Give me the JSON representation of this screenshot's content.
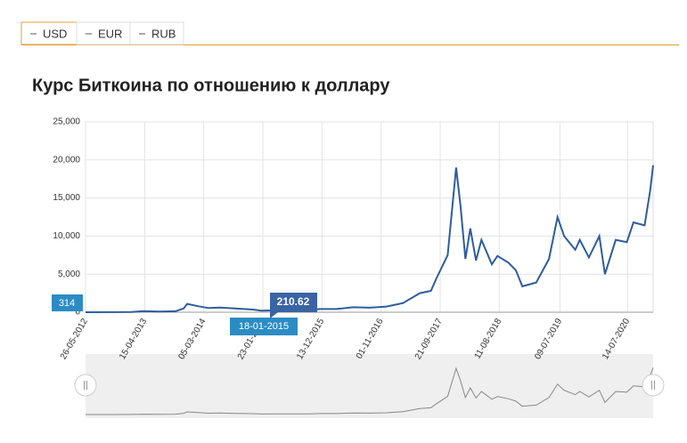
{
  "tabs": [
    "USD",
    "EUR",
    "RUB"
  ],
  "chart_data": {
    "type": "line",
    "title": "Курс Биткоина по отношению к доллару",
    "x": [
      "26-05-2012",
      "01-10-2012",
      "01-02-2013",
      "10-04-2013",
      "01-07-2013",
      "01-10-2013",
      "15-11-2013",
      "04-12-2013",
      "01-02-2014",
      "01-04-2014",
      "01-06-2014",
      "01-09-2014",
      "01-12-2014",
      "14-01-2015",
      "01-04-2015",
      "01-07-2015",
      "01-10-2015",
      "01-12-2015",
      "01-03-2016",
      "01-06-2016",
      "01-09-2016",
      "01-12-2016",
      "01-03-2017",
      "01-06-2017",
      "01-08-2017",
      "01-09-2017",
      "01-11-2017",
      "17-12-2017",
      "10-01-2018",
      "06-02-2018",
      "05-03-2018",
      "05-04-2018",
      "05-05-2018",
      "01-07-2018",
      "01-08-2018",
      "01-10-2018",
      "10-11-2018",
      "15-12-2018",
      "01-03-2019",
      "10-05-2019",
      "26-06-2019",
      "01-08-2019",
      "01-10-2019",
      "26-10-2019",
      "15-12-2019",
      "10-02-2020",
      "12-03-2020",
      "10-05-2020",
      "10-07-2020",
      "15-08-2020",
      "15-10-2020",
      "15-11-2020",
      "01-12-2020"
    ],
    "series": [
      {
        "name": "USD",
        "color": "#2f5d9a",
        "values": [
          5,
          12,
          20,
          140,
          90,
          130,
          500,
          1100,
          800,
          550,
          620,
          480,
          350,
          210,
          250,
          260,
          240,
          420,
          420,
          650,
          600,
          750,
          1200,
          2500,
          2800,
          4500,
          7500,
          19000,
          14000,
          7000,
          11000,
          6800,
          9500,
          6300,
          7400,
          6500,
          5500,
          3400,
          3900,
          7000,
          12500,
          10000,
          8200,
          9500,
          7200,
          10000,
          5000,
          9500,
          9200,
          11800,
          11400,
          16000,
          19300
        ]
      }
    ],
    "xlim": [
      "26-05-2012",
      "01-12-2020"
    ],
    "xticks": [
      "26-05-2012",
      "15-04-2013",
      "05-03-2014",
      "23-01-2015",
      "13-12-2015",
      "01-11-2016",
      "21-09-2017",
      "11-08-2018",
      "09-07-2019",
      "14-07-2020"
    ],
    "ylim": [
      0,
      25000
    ],
    "yticks": [
      0,
      {
        "value": 5000,
        "label": "5,000"
      },
      {
        "value": 10000,
        "label": "10,000"
      },
      {
        "value": 15000,
        "label": "15,000"
      },
      {
        "value": 20000,
        "label": "20,000"
      },
      {
        "value": 25000,
        "label": "25,000"
      }
    ],
    "grid": true,
    "crosshair": {
      "y_label": "314",
      "value": "210.62",
      "x": "18-01-2015"
    }
  }
}
